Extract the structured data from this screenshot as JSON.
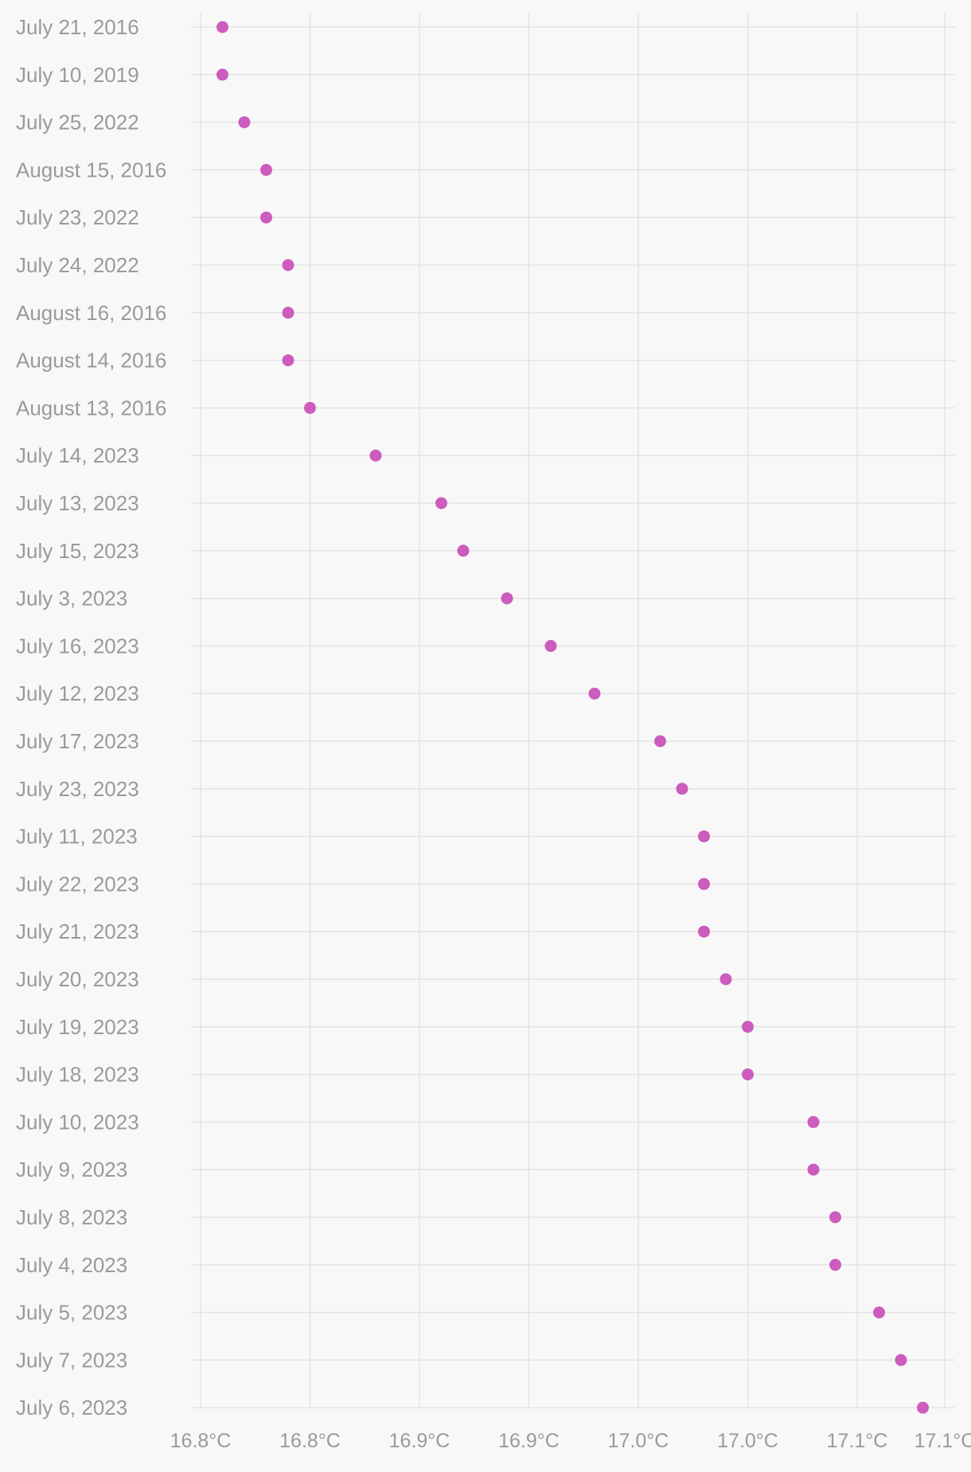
{
  "chart_data": {
    "type": "scatter",
    "orientation": "horizontal",
    "categories": [
      "July 21, 2016",
      "July 10, 2019",
      "July 25, 2022",
      "August 15, 2016",
      "July 23, 2022",
      "July 24, 2022",
      "August 16, 2016",
      "August 14, 2016",
      "August 13, 2016",
      "July 14, 2023",
      "July 13, 2023",
      "July 15, 2023",
      "July 3, 2023",
      "July 16, 2023",
      "July 12, 2023",
      "July 17, 2023",
      "July 23, 2023",
      "July 11, 2023",
      "July 22, 2023",
      "July 21, 2023",
      "July 20, 2023",
      "July 19, 2023",
      "July 18, 2023",
      "July 10, 2023",
      "July 9, 2023",
      "July 8, 2023",
      "July 4, 2023",
      "July 5, 2023",
      "July 7, 2023",
      "July 6, 2023"
    ],
    "values": [
      16.79,
      16.79,
      16.8,
      16.81,
      16.81,
      16.82,
      16.82,
      16.82,
      16.83,
      16.86,
      16.89,
      16.9,
      16.92,
      16.94,
      16.96,
      16.99,
      17.0,
      17.01,
      17.01,
      17.01,
      17.02,
      17.03,
      17.03,
      17.06,
      17.06,
      17.07,
      17.07,
      17.09,
      17.1,
      17.11
    ],
    "x_ticks": [
      16.78,
      16.83,
      16.88,
      16.93,
      16.98,
      17.03,
      17.08,
      17.12
    ],
    "x_tick_labels": [
      "16.8°C",
      "16.8°C",
      "16.9°C",
      "16.9°C",
      "17.0°C",
      "17.0°C",
      "17.1°C",
      "17.1°C"
    ],
    "xlim": [
      16.78,
      17.12
    ],
    "grid": true,
    "legend": "none",
    "title": "",
    "xlabel": "",
    "ylabel": "",
    "colors": {
      "dot": "#cc5cbd",
      "grid": "#e4e4e4",
      "label": "#9a9a9a",
      "background": "#f8f8f8"
    }
  }
}
